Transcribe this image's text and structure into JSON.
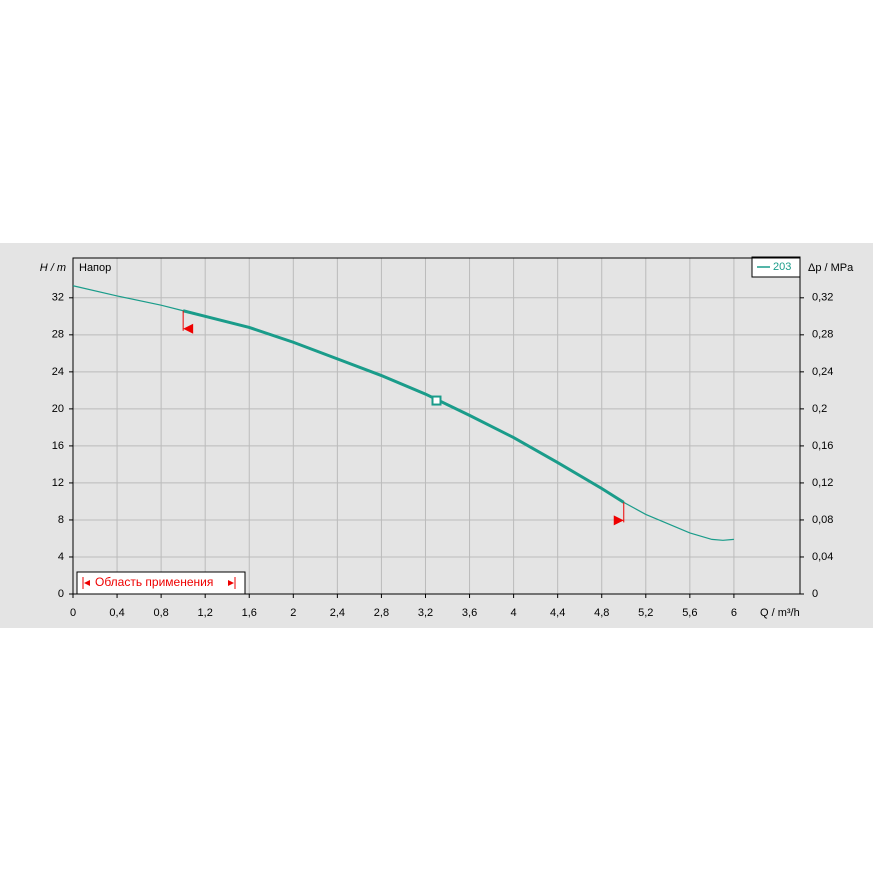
{
  "chart_data": {
    "type": "line",
    "subtitle": "Напор",
    "y_label": "H / m",
    "y2_label": "Δp / MPa",
    "x_label": "Q / m³/h",
    "annotation": "Область применения",
    "x": [
      0,
      0.4,
      0.8,
      1.0,
      1.2,
      1.6,
      2.0,
      2.4,
      2.8,
      3.2,
      3.6,
      4.0,
      4.4,
      4.8,
      5.0,
      5.2,
      5.6,
      5.8,
      5.9,
      6.0
    ],
    "series": [
      {
        "name": "203",
        "color": "#1a9c8a",
        "values": [
          33.3,
          32.2,
          31.2,
          30.6,
          30.0,
          28.8,
          27.2,
          25.4,
          23.6,
          21.6,
          19.3,
          16.9,
          14.2,
          11.4,
          9.9,
          8.6,
          6.6,
          5.9,
          5.8,
          5.9
        ]
      }
    ],
    "application_range": [
      1.0,
      5.0
    ],
    "operating_point": [
      3.3,
      20.9
    ],
    "xlim": [
      0,
      6.6
    ],
    "ylim": [
      0,
      36.3
    ],
    "y2lim": [
      0,
      0.363
    ],
    "xticks": [
      0,
      {
        "value": 0.4,
        "label": "0,4"
      },
      {
        "value": 0.8,
        "label": "0,8"
      },
      {
        "value": 1.2,
        "label": "1,2"
      },
      {
        "value": 1.6,
        "label": "1,6"
      },
      2,
      {
        "value": 2.4,
        "label": "2,4"
      },
      {
        "value": 2.8,
        "label": "2,8"
      },
      {
        "value": 3.2,
        "label": "3,2"
      },
      {
        "value": 3.6,
        "label": "3,6"
      },
      4,
      {
        "value": 4.4,
        "label": "4,4"
      },
      {
        "value": 4.8,
        "label": "4,8"
      },
      {
        "value": 5.2,
        "label": "5,2"
      },
      {
        "value": 5.6,
        "label": "5,6"
      },
      6
    ],
    "yticks": [
      0,
      4,
      8,
      12,
      16,
      20,
      24,
      28,
      32
    ],
    "y2ticks": [
      0,
      {
        "value": 0.04,
        "label": "0,04"
      },
      {
        "value": 0.08,
        "label": "0,08"
      },
      {
        "value": 0.12,
        "label": "0,12"
      },
      {
        "value": 0.16,
        "label": "0,16"
      },
      {
        "value": 0.2,
        "label": "0,2"
      },
      {
        "value": 0.24,
        "label": "0,24"
      },
      {
        "value": 0.28,
        "label": "0,28"
      },
      {
        "value": 0.32,
        "label": "0,32"
      }
    ],
    "grid": true,
    "legend": "top-right"
  }
}
